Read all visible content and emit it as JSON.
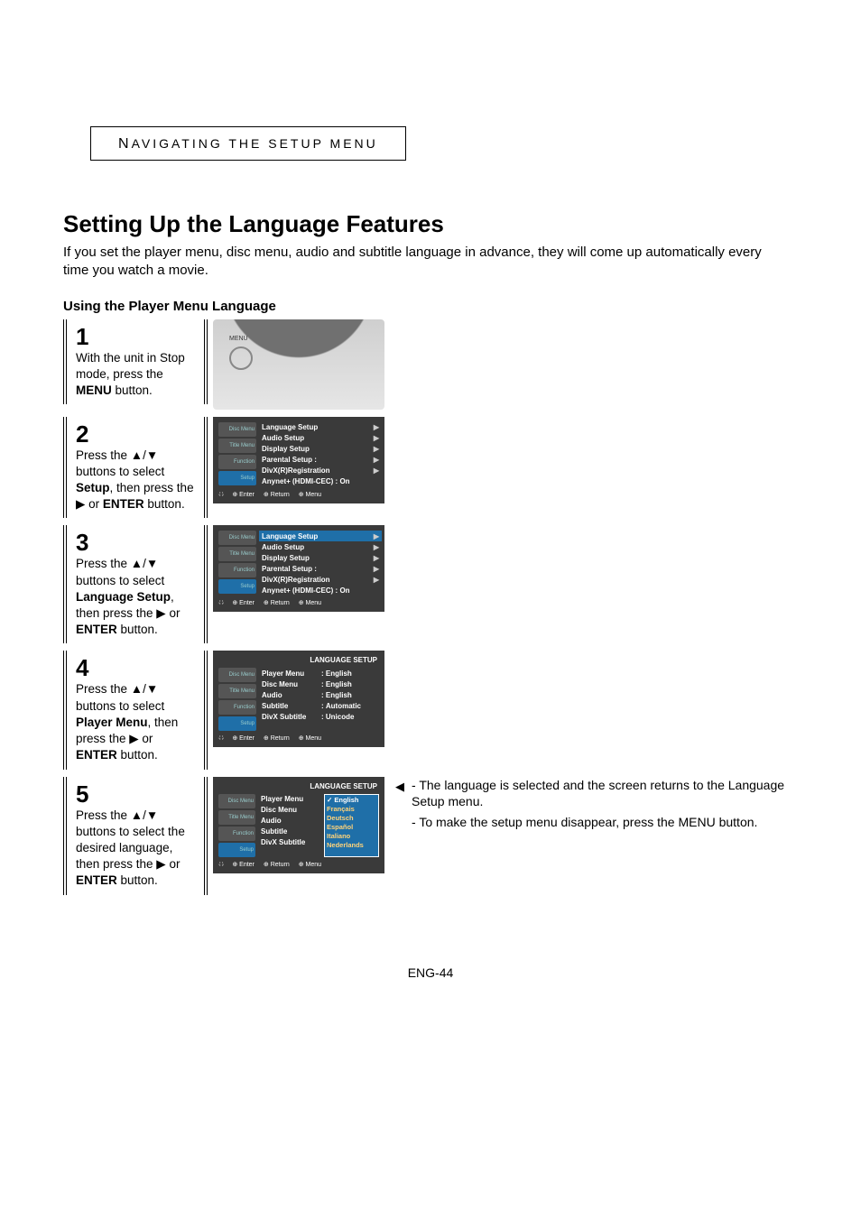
{
  "section_label": "Navigating the setup menu",
  "page_title": "Setting Up the Language Features",
  "intro": "If you set the player menu, disc menu, audio and subtitle language in advance, they will come up automatically every time you watch a movie.",
  "sub_heading": "Using the Player Menu Language",
  "steps": [
    {
      "number": "1",
      "html": "With the unit in Stop mode, press the <b>MENU</b> button."
    },
    {
      "number": "2",
      "html": "Press the ▲/▼ buttons to select <b>Setup</b>, then press the ▶ or <b>ENTER</b> button."
    },
    {
      "number": "3",
      "html": "Press the ▲/▼ buttons to select <b>Language Setup</b>, then press the ▶ or <b>ENTER</b> button."
    },
    {
      "number": "4",
      "html": "Press the ▲/▼ buttons to select <b>Player Menu</b>, then press the ▶ or <b>ENTER</b> button."
    },
    {
      "number": "5",
      "html": "Press the ▲/▼ buttons to select the desired language, then press the ▶ or <b>ENTER</b> button."
    }
  ],
  "osd_side_labels": [
    "Disc Menu",
    "Title Menu",
    "Function",
    "Setup"
  ],
  "osd_setup_items": [
    "Language Setup",
    "Audio Setup",
    "Display Setup",
    "Parental Setup :",
    "DivX(R)Registration",
    "Anynet+ (HDMI-CEC) : On"
  ],
  "osd_lang_title": "LANGUAGE SETUP",
  "osd_lang_items": [
    {
      "label": "Player Menu",
      "value": "English"
    },
    {
      "label": "Disc Menu",
      "value": "English"
    },
    {
      "label": "Audio",
      "value": "English"
    },
    {
      "label": "Subtitle",
      "value": "Automatic"
    },
    {
      "label": "DivX Subtitle",
      "value": "Unicode"
    }
  ],
  "osd_lang_options": [
    "English",
    "Français",
    "Deutsch",
    "Español",
    "Italiano",
    "Nederlands"
  ],
  "osd_footer": [
    "Enter",
    "Return",
    "Menu"
  ],
  "notes": [
    "The language is selected and the screen returns to the Language Setup menu.",
    "To make the setup menu disappear, press the MENU button."
  ],
  "page_number": "ENG-44",
  "colors": {
    "osd_bg": "#3a3a3a",
    "osd_highlight": "#1f6fa8",
    "osd_option": "#ffd37a"
  }
}
